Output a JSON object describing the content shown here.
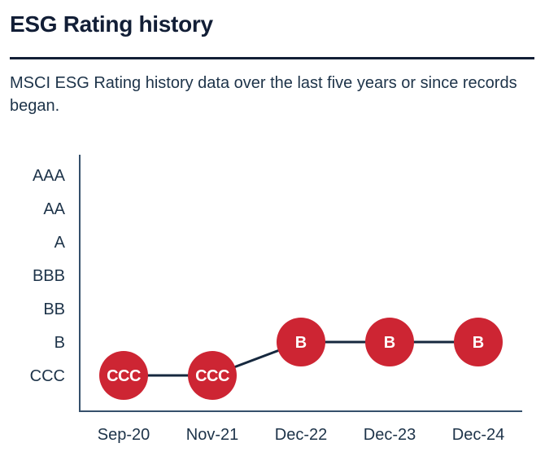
{
  "page": {
    "title": "ESG Rating history",
    "subtitle": "MSCI ESG Rating history data over the last five years or since records began."
  },
  "colors": {
    "heading_text": "#121e36",
    "body_text": "#1d3349",
    "axis_label_text": "#1d3349",
    "axis_line": "#35506b",
    "data_line": "#16283e",
    "marker_fill": "#cd2533",
    "marker_text": "#ffffff",
    "background": "#ffffff"
  },
  "chart_data": {
    "type": "line",
    "title": "ESG Rating history",
    "xlabel": "",
    "ylabel": "",
    "x_categories": [
      "Sep-20",
      "Nov-21",
      "Dec-22",
      "Dec-23",
      "Dec-24"
    ],
    "y_categories": [
      "AAA",
      "AA",
      "A",
      "BBB",
      "BB",
      "B",
      "CCC"
    ],
    "series": [
      {
        "name": "MSCI ESG Rating",
        "values": [
          "CCC",
          "CCC",
          "B",
          "B",
          "B"
        ]
      }
    ],
    "marker_labels": [
      "CCC",
      "CCC",
      "B",
      "B",
      "B"
    ],
    "grid": false,
    "legend": false,
    "y_axis_order": "AAA top to CCC bottom"
  }
}
